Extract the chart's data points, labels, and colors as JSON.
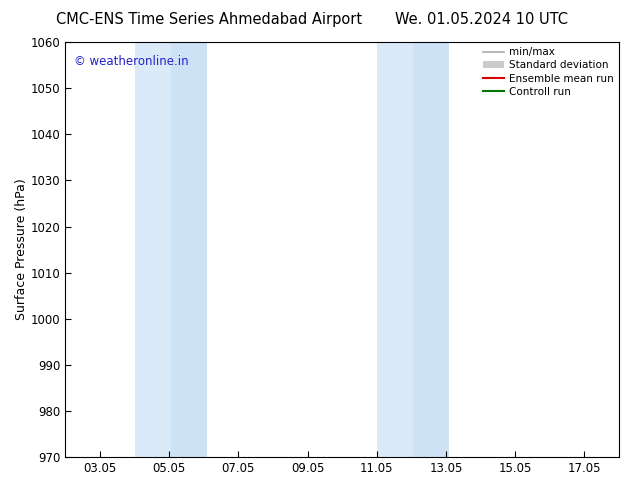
{
  "title_left": "CMC-ENS Time Series Ahmedabad Airport",
  "title_right": "We. 01.05.2024 10 UTC",
  "ylabel": "Surface Pressure (hPa)",
  "ylim": [
    970,
    1060
  ],
  "yticks": [
    970,
    980,
    990,
    1000,
    1010,
    1020,
    1030,
    1040,
    1050,
    1060
  ],
  "xlim": [
    2.0,
    18.0
  ],
  "xtick_labels": [
    "03.05",
    "05.05",
    "07.05",
    "09.05",
    "11.05",
    "13.05",
    "15.05",
    "17.05"
  ],
  "xtick_positions": [
    3,
    5,
    7,
    9,
    11,
    13,
    15,
    17
  ],
  "shaded_bands": [
    {
      "x_start": 4.0,
      "x_end": 5.05,
      "color": "#daeaf8"
    },
    {
      "x_start": 5.05,
      "x_end": 6.1,
      "color": "#cde3f5"
    },
    {
      "x_start": 11.0,
      "x_end": 12.05,
      "color": "#daeaf8"
    },
    {
      "x_start": 12.05,
      "x_end": 13.1,
      "color": "#cde3f5"
    }
  ],
  "watermark_text": "© weatheronline.in",
  "watermark_color": "#2222cc",
  "legend_entries": [
    {
      "label": "min/max",
      "color": "#aaaaaa",
      "type": "line",
      "lw": 1.2
    },
    {
      "label": "Standard deviation",
      "color": "#cccccc",
      "type": "rect"
    },
    {
      "label": "Ensemble mean run",
      "color": "#dd0000",
      "type": "line",
      "lw": 1.5
    },
    {
      "label": "Controll run",
      "color": "#007700",
      "type": "line",
      "lw": 1.5
    }
  ],
  "background_color": "#ffffff",
  "title_fontsize": 10.5,
  "axis_label_fontsize": 9,
  "tick_fontsize": 8.5,
  "watermark_fontsize": 8.5
}
